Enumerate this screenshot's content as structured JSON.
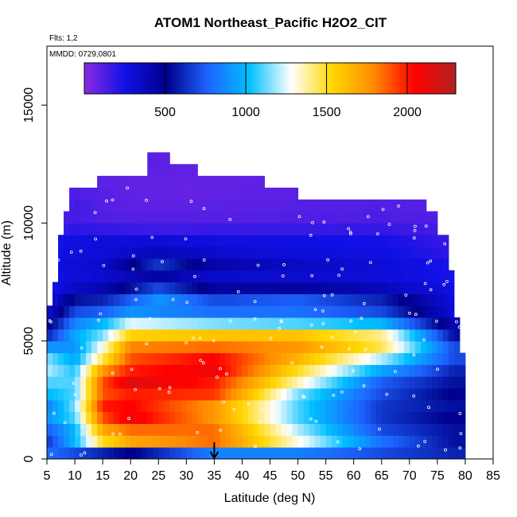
{
  "chart_data": {
    "type": "heatmap",
    "title": "ATOM1 Northeast_Pacific H2O2_CIT",
    "flights_label": "Flts: 1,2",
    "dates_label": "MMDD: 0729,0801",
    "xlabel": "Latitude (deg N)",
    "ylabel": "Altitude (m)",
    "xlim": [
      5,
      85
    ],
    "ylim": [
      0,
      17500
    ],
    "x_ticks": [
      "5",
      "10",
      "15",
      "20",
      "25",
      "30",
      "35",
      "40",
      "45",
      "50",
      "55",
      "60",
      "65",
      "70",
      "75",
      "80",
      "85"
    ],
    "x_tick_values": [
      5,
      10,
      15,
      20,
      25,
      30,
      35,
      40,
      45,
      50,
      55,
      60,
      65,
      70,
      75,
      80,
      85
    ],
    "y_ticks": [
      "0",
      "5000",
      "10000",
      "15000"
    ],
    "y_tick_values": [
      0,
      5000,
      10000,
      15000
    ],
    "colorbar": {
      "range": [
        0,
        2300
      ],
      "ticks": [
        "500",
        "1000",
        "1500",
        "2000"
      ],
      "tick_values": [
        500,
        1000,
        1500,
        2000
      ],
      "colors": [
        "#8a2be2",
        "#1010e6",
        "#00008b",
        "#1e64ff",
        "#00bfff",
        "#ffffff",
        "#ffd700",
        "#ff8c00",
        "#ff0000",
        "#b22222"
      ]
    },
    "marker": {
      "latitude": 35,
      "direction": "down-arrow"
    },
    "grid": {
      "lat_step": 1,
      "alt_step": 500
    },
    "columns": [
      {
        "lat0": 5,
        "lat1": 6,
        "top": 6500
      },
      {
        "lat0": 6,
        "lat1": 7,
        "top": 7500
      },
      {
        "lat0": 7,
        "lat1": 8,
        "top": 9500
      },
      {
        "lat0": 8,
        "lat1": 9,
        "top": 10500
      },
      {
        "lat0": 9,
        "lat1": 11,
        "top": 11500
      },
      {
        "lat0": 11,
        "lat1": 14,
        "top": 11500
      },
      {
        "lat0": 14,
        "lat1": 17,
        "top": 12000
      },
      {
        "lat0": 17,
        "lat1": 20,
        "top": 12000
      },
      {
        "lat0": 20,
        "lat1": 23,
        "top": 12000
      },
      {
        "lat0": 23,
        "lat1": 27,
        "top": 13000
      },
      {
        "lat0": 27,
        "lat1": 32,
        "top": 12500
      },
      {
        "lat0": 32,
        "lat1": 37,
        "top": 12000
      },
      {
        "lat0": 37,
        "lat1": 44,
        "top": 12000
      },
      {
        "lat0": 44,
        "lat1": 50,
        "top": 11500
      },
      {
        "lat0": 50,
        "lat1": 60,
        "top": 11000
      },
      {
        "lat0": 60,
        "lat1": 65,
        "top": 11000
      },
      {
        "lat0": 65,
        "lat1": 70,
        "top": 11000
      },
      {
        "lat0": 70,
        "lat1": 73,
        "top": 11000
      },
      {
        "lat0": 73,
        "lat1": 75,
        "top": 10500
      },
      {
        "lat0": 75,
        "lat1": 77,
        "top": 9500
      },
      {
        "lat0": 77,
        "lat1": 78,
        "top": 8000
      },
      {
        "lat0": 78,
        "lat1": 79,
        "top": 6000
      },
      {
        "lat0": 79,
        "lat1": 80,
        "top": 4500
      }
    ],
    "bands": [
      {
        "alt0": 0,
        "alt1": 500,
        "values": {
          "5": 800,
          "10": 700,
          "20": 500,
          "35": 850,
          "50": 850,
          "65": 700,
          "78": 600
        }
      },
      {
        "alt0": 500,
        "alt1": 1000,
        "values": {
          "5": 650,
          "10": 1000,
          "15": 1500,
          "20": 1700,
          "35": 1850,
          "50": 1300,
          "65": 800,
          "78": 550
        }
      },
      {
        "alt0": 1000,
        "alt1": 1500,
        "values": {
          "5": 750,
          "10": 1000,
          "15": 1700,
          "20": 1850,
          "35": 1850,
          "50": 1200,
          "65": 700,
          "78": 550
        }
      },
      {
        "alt0": 1500,
        "alt1": 2000,
        "values": {
          "5": 900,
          "10": 1100,
          "15": 1900,
          "20": 2100,
          "35": 1750,
          "50": 1100,
          "65": 650,
          "78": 500
        }
      },
      {
        "alt0": 2000,
        "alt1": 2500,
        "values": {
          "5": 850,
          "10": 1150,
          "15": 2000,
          "20": 2050,
          "35": 1750,
          "50": 1100,
          "65": 650,
          "78": 550
        }
      },
      {
        "alt0": 2500,
        "alt1": 3000,
        "values": {
          "5": 1000,
          "10": 1100,
          "15": 1900,
          "20": 2000,
          "35": 1950,
          "50": 1150,
          "65": 700,
          "78": 500
        }
      },
      {
        "alt0": 3000,
        "alt1": 3500,
        "values": {
          "5": 1100,
          "10": 1100,
          "15": 1900,
          "20": 2150,
          "35": 2000,
          "50": 1350,
          "65": 750,
          "78": 550
        }
      },
      {
        "alt0": 3500,
        "alt1": 4000,
        "values": {
          "5": 1200,
          "10": 1050,
          "15": 1750,
          "20": 2000,
          "35": 2100,
          "50": 1500,
          "65": 950,
          "78": 600
        }
      },
      {
        "alt0": 4000,
        "alt1": 4500,
        "values": {
          "5": 1150,
          "10": 950,
          "15": 1450,
          "20": 1900,
          "35": 2050,
          "50": 1650,
          "65": 1200,
          "78": 700
        }
      },
      {
        "alt0": 4500,
        "alt1": 5000,
        "values": {
          "5": 900,
          "10": 900,
          "15": 1300,
          "20": 1800,
          "35": 1850,
          "50": 1750,
          "65": 1450,
          "78": 700
        }
      },
      {
        "alt0": 5000,
        "alt1": 5500,
        "values": {
          "5": 600,
          "10": 950,
          "15": 1150,
          "20": 1550,
          "35": 1600,
          "50": 1600,
          "65": 1400,
          "78": 550
        }
      },
      {
        "alt0": 5500,
        "alt1": 6000,
        "values": {
          "5": 450,
          "10": 850,
          "15": 1000,
          "20": 1250,
          "35": 1150,
          "50": 1100,
          "65": 1000,
          "78": 400
        }
      },
      {
        "alt0": 6000,
        "alt1": 6500,
        "values": {
          "5": 300,
          "10": 700,
          "15": 750,
          "20": 900,
          "35": 800,
          "50": 800,
          "65": 700,
          "78": 300
        }
      },
      {
        "alt0": 6500,
        "alt1": 7000,
        "values": {
          "5": 250,
          "10": 550,
          "15": 600,
          "25": 900,
          "35": 700,
          "50": 750,
          "65": 600,
          "78": 280
        }
      },
      {
        "alt0": 7000,
        "alt1": 7500,
        "values": {
          "6": 250,
          "10": 350,
          "15": 400,
          "25": 700,
          "35": 450,
          "50": 450,
          "65": 380,
          "78": 260
        }
      },
      {
        "alt0": 7500,
        "alt1": 8000,
        "values": {
          "7": 260,
          "10": 300,
          "15": 320,
          "25": 450,
          "35": 330,
          "50": 320,
          "65": 300,
          "77": 240
        }
      },
      {
        "alt0": 8000,
        "alt1": 8500,
        "values": {
          "7": 280,
          "10": 300,
          "15": 330,
          "25": 650,
          "35": 420,
          "50": 350,
          "65": 300,
          "76": 240
        }
      },
      {
        "alt0": 8500,
        "alt1": 9000,
        "values": {
          "7": 260,
          "10": 280,
          "15": 300,
          "25": 380,
          "35": 330,
          "50": 290,
          "65": 270,
          "76": 200
        }
      },
      {
        "alt0": 9000,
        "alt1": 9500,
        "values": {
          "7": 240,
          "10": 270,
          "15": 290,
          "25": 300,
          "35": 280,
          "50": 260,
          "65": 250,
          "76": 180
        }
      },
      {
        "alt0": 9500,
        "alt1": 10000,
        "values": {
          "8": 180,
          "10": 200,
          "15": 180,
          "25": 160,
          "35": 170,
          "50": 170,
          "65": 180,
          "75": 150
        }
      },
      {
        "alt0": 10000,
        "alt1": 10500,
        "values": {
          "8": 140,
          "10": 150,
          "15": 120,
          "25": 110,
          "35": 110,
          "50": 120,
          "65": 130,
          "75": 120
        }
      },
      {
        "alt0": 10500,
        "alt1": 11000,
        "values": {
          "9": 120,
          "10": 160,
          "15": 110,
          "25": 90,
          "35": 100,
          "50": 110,
          "65": 120,
          "73": 110
        }
      },
      {
        "alt0": 11000,
        "alt1": 11500,
        "values": {
          "9": 130,
          "12": 120,
          "20": 90,
          "30": 80,
          "40": 90,
          "48": 100
        }
      },
      {
        "alt0": 11500,
        "alt1": 12000,
        "values": {
          "15": 100,
          "20": 90,
          "30": 80,
          "40": 90
        }
      },
      {
        "alt0": 12000,
        "alt1": 12500,
        "values": {
          "23": 100,
          "28": 90,
          "31": 90
        }
      },
      {
        "alt0": 12500,
        "alt1": 13000,
        "values": {
          "23": 110,
          "26": 100
        }
      }
    ]
  }
}
